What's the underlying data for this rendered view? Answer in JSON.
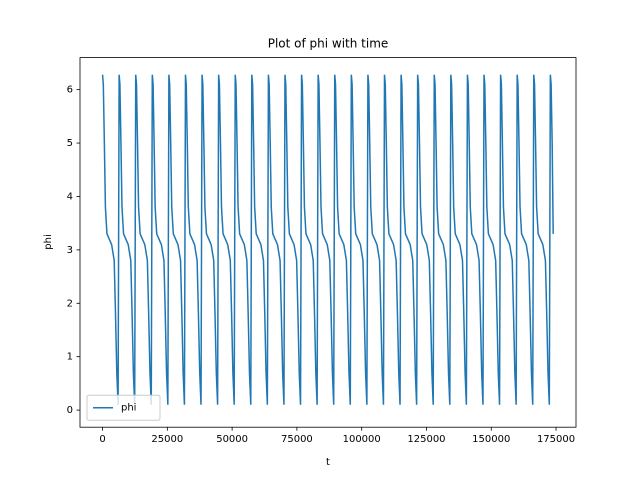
{
  "chart_data": {
    "type": "line",
    "title": "Plot of phi with time",
    "x_label": "t",
    "y_label": "phi",
    "xlim": [
      -8700,
      182700
    ],
    "ylim": [
      -0.32,
      6.6
    ],
    "xticks": [
      0,
      25000,
      50000,
      75000,
      100000,
      125000,
      150000,
      175000
    ],
    "yticks": [
      0,
      1,
      2,
      3,
      4,
      5,
      6
    ],
    "legend": "lower left",
    "x": [
      0,
      300,
      700,
      1100,
      1700,
      3500,
      4500,
      5000,
      5500,
      6000,
      6400,
      6700,
      7100,
      7500,
      8100,
      9900,
      10900,
      11400,
      11900,
      12400,
      12800,
      13100,
      13500,
      13900,
      14500,
      16300,
      17300,
      17800,
      18300,
      18800,
      19200,
      19500,
      19900,
      20300,
      20900,
      22700,
      23700,
      24200,
      24700,
      25200,
      25600,
      25900,
      26300,
      26700,
      27300,
      29100,
      30100,
      30600,
      31100,
      31600,
      32000,
      32300,
      32700,
      33100,
      33700,
      35500,
      36500,
      37000,
      37500,
      38000,
      38400,
      38700,
      39100,
      39500,
      40100,
      41900,
      42900,
      43400,
      43900,
      44400,
      44800,
      45100,
      45500,
      45900,
      46500,
      48300,
      49300,
      49800,
      50300,
      50800,
      51200,
      51500,
      51900,
      52300,
      52900,
      54700,
      55700,
      56200,
      56700,
      57200,
      57600,
      57900,
      58300,
      58700,
      59300,
      61100,
      62100,
      62600,
      63100,
      63600,
      64000,
      64300,
      64700,
      65100,
      65700,
      67500,
      68500,
      69000,
      69500,
      70000,
      70400,
      70700,
      71100,
      71500,
      72100,
      73900,
      74900,
      75400,
      75900,
      76400,
      76800,
      77100,
      77500,
      77900,
      78500,
      80300,
      81300,
      81800,
      82300,
      82800,
      83200,
      83500,
      83900,
      84300,
      84900,
      86700,
      87700,
      88200,
      88700,
      89200,
      89600,
      89900,
      90300,
      90700,
      91300,
      93100,
      94100,
      94600,
      95100,
      95600,
      96000,
      96300,
      96700,
      97100,
      97700,
      99500,
      100500,
      101000,
      101500,
      102000,
      102400,
      102700,
      103100,
      103500,
      104100,
      105900,
      106900,
      107400,
      107900,
      108400,
      108800,
      109100,
      109500,
      109900,
      110500,
      112300,
      113300,
      113800,
      114300,
      114800,
      115200,
      115500,
      115900,
      116300,
      116900,
      118700,
      119700,
      120200,
      120700,
      121200,
      121600,
      121900,
      122300,
      122700,
      123300,
      125100,
      126100,
      126600,
      127100,
      127600,
      128000,
      128300,
      128700,
      129100,
      129700,
      131500,
      132500,
      133000,
      133500,
      134000,
      134400,
      134700,
      135100,
      135500,
      136100,
      137900,
      138900,
      139400,
      139900,
      140400,
      140800,
      141100,
      141500,
      141900,
      142500,
      144300,
      145300,
      145800,
      146300,
      146800,
      147200,
      147500,
      147900,
      148300,
      148900,
      150700,
      151700,
      152200,
      152700,
      153200,
      153600,
      153900,
      154300,
      154700,
      155300,
      157100,
      158100,
      158600,
      159100,
      159600,
      160000,
      160300,
      160700,
      161100,
      161700,
      163500,
      164500,
      165000,
      165500,
      166000,
      166400,
      166700,
      167100,
      167500,
      168100,
      169900,
      170900,
      171400,
      171900,
      172400,
      172800,
      173100,
      173500,
      173900
    ],
    "series": [
      {
        "name": "phi",
        "color": "#1f77b4",
        "values": [
          6.28,
          6.1,
          5.0,
          3.8,
          3.3,
          3.1,
          2.8,
          1.8,
          0.7,
          0.1,
          6.28,
          6.1,
          5.0,
          3.8,
          3.3,
          3.1,
          2.8,
          1.8,
          0.7,
          0.1,
          6.28,
          6.1,
          5.0,
          3.8,
          3.3,
          3.1,
          2.8,
          1.8,
          0.7,
          0.1,
          6.28,
          6.1,
          5.0,
          3.8,
          3.3,
          3.1,
          2.8,
          1.8,
          0.7,
          0.1,
          6.28,
          6.1,
          5.0,
          3.8,
          3.3,
          3.1,
          2.8,
          1.8,
          0.7,
          0.1,
          6.28,
          6.1,
          5.0,
          3.8,
          3.3,
          3.1,
          2.8,
          1.8,
          0.7,
          0.1,
          6.28,
          6.1,
          5.0,
          3.8,
          3.3,
          3.1,
          2.8,
          1.8,
          0.7,
          0.1,
          6.28,
          6.1,
          5.0,
          3.8,
          3.3,
          3.1,
          2.8,
          1.8,
          0.7,
          0.1,
          6.28,
          6.1,
          5.0,
          3.8,
          3.3,
          3.1,
          2.8,
          1.8,
          0.7,
          0.1,
          6.28,
          6.1,
          5.0,
          3.8,
          3.3,
          3.1,
          2.8,
          1.8,
          0.7,
          0.1,
          6.28,
          6.1,
          5.0,
          3.8,
          3.3,
          3.1,
          2.8,
          1.8,
          0.7,
          0.1,
          6.28,
          6.1,
          5.0,
          3.8,
          3.3,
          3.1,
          2.8,
          1.8,
          0.7,
          0.1,
          6.28,
          6.1,
          5.0,
          3.8,
          3.3,
          3.1,
          2.8,
          1.8,
          0.7,
          0.1,
          6.28,
          6.1,
          5.0,
          3.8,
          3.3,
          3.1,
          2.8,
          1.8,
          0.7,
          0.1,
          6.28,
          6.1,
          5.0,
          3.8,
          3.3,
          3.1,
          2.8,
          1.8,
          0.7,
          0.1,
          6.28,
          6.1,
          5.0,
          3.8,
          3.3,
          3.1,
          2.8,
          1.8,
          0.7,
          0.1,
          6.28,
          6.1,
          5.0,
          3.8,
          3.3,
          3.1,
          2.8,
          1.8,
          0.7,
          0.1,
          6.28,
          6.1,
          5.0,
          3.8,
          3.3,
          3.1,
          2.8,
          1.8,
          0.7,
          0.1,
          6.28,
          6.1,
          5.0,
          3.8,
          3.3,
          3.1,
          2.8,
          1.8,
          0.7,
          0.1,
          6.28,
          6.1,
          5.0,
          3.8,
          3.3,
          3.1,
          2.8,
          1.8,
          0.7,
          0.1,
          6.28,
          6.1,
          5.0,
          3.8,
          3.3,
          3.1,
          2.8,
          1.8,
          0.7,
          0.1,
          6.28,
          6.1,
          5.0,
          3.8,
          3.3,
          3.1,
          2.8,
          1.8,
          0.7,
          0.1,
          6.28,
          6.1,
          5.0,
          3.8,
          3.3,
          3.1,
          2.8,
          1.8,
          0.7,
          0.1,
          6.28,
          6.1,
          5.0,
          3.8,
          3.3,
          3.1,
          2.8,
          1.8,
          0.7,
          0.1,
          6.28,
          6.1,
          5.0,
          3.8,
          3.3,
          3.1,
          2.8,
          1.8,
          0.7,
          0.1,
          6.28,
          6.1,
          5.0,
          3.8,
          3.3,
          3.1,
          2.8,
          1.8,
          0.7,
          0.1,
          6.28,
          6.1,
          5.0,
          3.8,
          3.3,
          3.1,
          2.8,
          1.8,
          0.7,
          0.1,
          6.28,
          6.1,
          5.0,
          3.3
        ]
      }
    ]
  }
}
